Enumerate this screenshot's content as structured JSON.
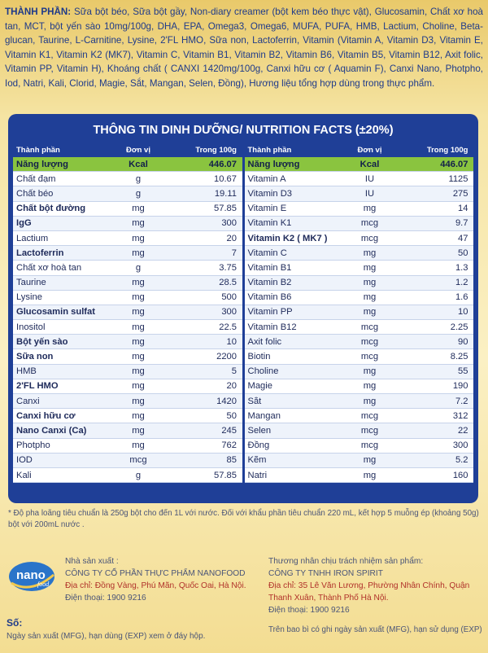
{
  "ingredients": {
    "label": "THÀNH PHẦN:",
    "text": "Sữa bột béo, Sữa bột gầy, Non-diary creamer (bột kem béo thực vật), Glucosamin, Chất xơ hoà tan, MCT, bột yến sào 10mg/100g, DHA, EPA, Omega3, Omega6, MUFA, PUFA, HMB, Lactium, Choline, Beta-glucan, Taurine, L-Carnitine, Lysine, 2'FL HMO, Sữa non, Lactoferrin, Vitamin (Vitamin A, Vitamin D3, Vitamin E, Vitamin K1, Vitamin K2 (MK7), Vitamin C, Vitamin B1, Vitamin B2, Vitamin B6, Vitamin B5, Vitamin B12, Axit folic, Vitamin PP, Vitamin H), Khoáng chất ( CANXI 1420mg/100g, Canxi hữu cơ ( Aquamin F), Canxi Nano, Photpho, Iod, Natri, Kali, Clorid, Magie, Sắt, Mangan, Selen, Đồng), Hương liệu tổng hợp dùng trong thực phẩm."
  },
  "nutrition": {
    "title": "THÔNG TIN DINH DƯỠNG/ NUTRITION FACTS (±20%)",
    "headers": [
      "Thành phần",
      "Đơn vị",
      "Trong 100g"
    ],
    "left": [
      {
        "name": "Năng lượng",
        "unit": "Kcal",
        "value": "446.07",
        "bold": true,
        "energy": true
      },
      {
        "name": "Chất đạm",
        "unit": "g",
        "value": "10.67"
      },
      {
        "name": "Chất béo",
        "unit": "g",
        "value": "19.11"
      },
      {
        "name": "Chất bột đường",
        "unit": "mg",
        "value": "57.85",
        "bold": true
      },
      {
        "name": "IgG",
        "unit": "mg",
        "value": "300",
        "bold": true
      },
      {
        "name": "Lactium",
        "unit": "mg",
        "value": "20"
      },
      {
        "name": "Lactoferrin",
        "unit": "mg",
        "value": "7",
        "bold": true
      },
      {
        "name": "Chất xơ hoà tan",
        "unit": "g",
        "value": "3.75"
      },
      {
        "name": "Taurine",
        "unit": "mg",
        "value": "28.5"
      },
      {
        "name": "Lysine",
        "unit": "mg",
        "value": "500"
      },
      {
        "name": "Glucosamin sulfat",
        "unit": "mg",
        "value": "300",
        "bold": true
      },
      {
        "name": "Inositol",
        "unit": "mg",
        "value": "22.5"
      },
      {
        "name": "Bột yến sào",
        "unit": "mg",
        "value": "10",
        "bold": true
      },
      {
        "name": "Sữa non",
        "unit": "mg",
        "value": "2200",
        "bold": true
      },
      {
        "name": "HMB",
        "unit": "mg",
        "value": "5"
      },
      {
        "name": "2'FL HMO",
        "unit": "mg",
        "value": "20",
        "bold": true
      },
      {
        "name": "Canxi",
        "unit": "mg",
        "value": "1420"
      },
      {
        "name": "Canxi hữu cơ",
        "unit": "mg",
        "value": "50",
        "bold": true
      },
      {
        "name": "Nano Canxi (Ca)",
        "unit": "mg",
        "value": "245",
        "bold": true
      },
      {
        "name": "Photpho",
        "unit": "mg",
        "value": "762"
      },
      {
        "name": "IOD",
        "unit": "mcg",
        "value": "85"
      },
      {
        "name": "Kali",
        "unit": "g",
        "value": "57.85"
      }
    ],
    "right": [
      {
        "name": "Năng lượng",
        "unit": "Kcal",
        "value": "446.07",
        "bold": true,
        "energy": true
      },
      {
        "name": "Vitamin A",
        "unit": "IU",
        "value": "1125"
      },
      {
        "name": "Vitamin D3",
        "unit": "IU",
        "value": "275"
      },
      {
        "name": "Vitamin E",
        "unit": "mg",
        "value": "14"
      },
      {
        "name": "Vitamin K1",
        "unit": "mcg",
        "value": "9.7"
      },
      {
        "name": "Vitamin K2 ( MK7 )",
        "unit": "mcg",
        "value": "47",
        "bold": true
      },
      {
        "name": "Vitamin C",
        "unit": "mg",
        "value": "50"
      },
      {
        "name": "Vitamin B1",
        "unit": "mg",
        "value": "1.3"
      },
      {
        "name": "Vitamin B2",
        "unit": "mg",
        "value": "1.2"
      },
      {
        "name": "Vitamin B6",
        "unit": "mg",
        "value": "1.6"
      },
      {
        "name": "Vitamin PP",
        "unit": "mg",
        "value": "10"
      },
      {
        "name": "Vitamin B12",
        "unit": "mcg",
        "value": "2.25"
      },
      {
        "name": "Axit folic",
        "unit": "mcg",
        "value": "90"
      },
      {
        "name": "Biotin",
        "unit": "mcg",
        "value": "8.25"
      },
      {
        "name": "Choline",
        "unit": "mg",
        "value": "55"
      },
      {
        "name": "Magie",
        "unit": "mg",
        "value": "190"
      },
      {
        "name": "Sắt",
        "unit": "mg",
        "value": "7.2"
      },
      {
        "name": "Mangan",
        "unit": "mcg",
        "value": "312"
      },
      {
        "name": "Selen",
        "unit": "mcg",
        "value": "22"
      },
      {
        "name": "Đồng",
        "unit": "mcg",
        "value": "300"
      },
      {
        "name": "Kẽm",
        "unit": "mg",
        "value": "5.2"
      },
      {
        "name": "Natri",
        "unit": "mg",
        "value": "160"
      }
    ]
  },
  "note": "* Độ pha loãng tiêu chuẩn là 250g bột cho đến 1L với nước. Đối với khẩu phần tiêu chuẩn 220 mL, kết hợp 5 muỗng ép (khoảng 50g) bột với 200mL nước .",
  "logo": {
    "text": "nano",
    "sub": "food"
  },
  "manufacturer": {
    "heading": "Nhà sản xuất :",
    "name": "CÔNG TY CỔ PHẦN THỰC PHẨM NANOFOOD",
    "address": "Địa chỉ: Đồng Vàng, Phú Mãn, Quốc Oai, Hà Nội.",
    "phone": "Điện thoại: 1900 9216"
  },
  "trader": {
    "heading": "Thương nhân chịu trách nhiệm sản phẩm:",
    "name": "CÔNG TY TNHH IRON SPIRIT",
    "address": "Địa chỉ: 35 Lê Văn Lương, Phường Nhân Chính, Quận Thanh Xuân, Thành Phố Hà Nội.",
    "phone": "Điện thoại: 1900 9216",
    "footer": "Trên bao bì có ghi ngày sản xuất (MFG), hạn sử dụng (EXP)"
  },
  "lot": {
    "label": "Số:",
    "mfg": "Ngày sản xuất (MFG), hạn dùng (EXP) xem ở đáy hộp."
  },
  "colors": {
    "panel": "#1f3f97",
    "energy_row": "#8ac43f",
    "accent_red": "#b0312a"
  }
}
